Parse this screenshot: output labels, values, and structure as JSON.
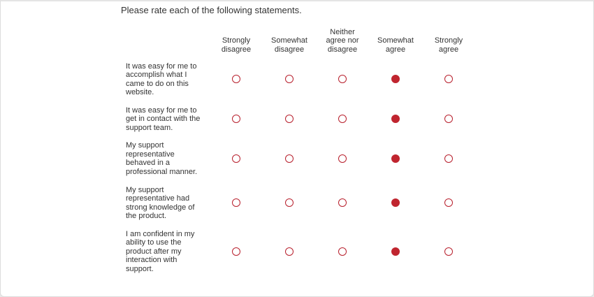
{
  "prompt": "Please rate each of the following statements.",
  "columns": [
    "Strongly disagree",
    "Somewhat disagree",
    "Neither agree nor disagree",
    "Somewhat agree",
    "Strongly agree"
  ],
  "rows": [
    {
      "statement": "It was easy for me to accomplish what I came to do on this website.",
      "selected": 3
    },
    {
      "statement": "It was easy for me to get in contact with the support team.",
      "selected": 3
    },
    {
      "statement": "My support representative behaved in a professional manner.",
      "selected": 3
    },
    {
      "statement": "My support representative had strong knowledge of the product.",
      "selected": 3
    },
    {
      "statement": "I am confident in my ability to use the product after my interaction with support.",
      "selected": 3
    }
  ]
}
